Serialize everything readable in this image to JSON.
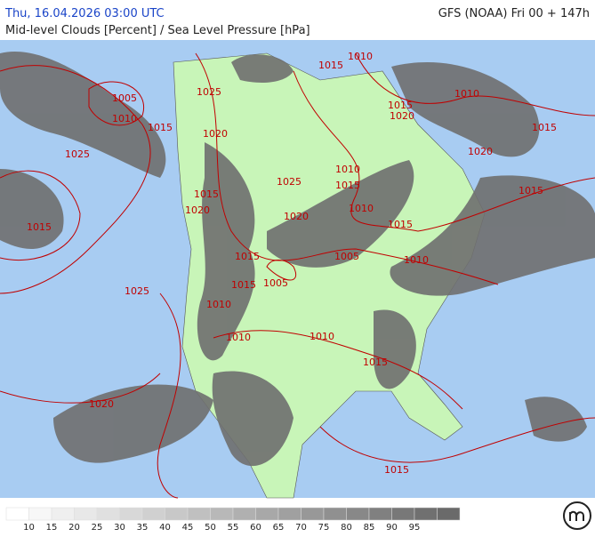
{
  "header": {
    "valid_time": "Thu, 16.04.2026 03:00 UTC",
    "model": "GFS (NOAA) Fri 00 + 147h",
    "title": "Mid-level Clouds [Percent] / Sea Level Pressure [hPa]"
  },
  "isobar_labels": [
    "1015",
    "1010",
    "1005",
    "1010",
    "1015",
    "1025",
    "1020",
    "1015",
    "1020",
    "1010",
    "1015",
    "1020",
    "1025",
    "1015",
    "1010",
    "1015",
    "1025",
    "1010",
    "1020",
    "1020",
    "1015",
    "1015",
    "1015",
    "1015",
    "1005",
    "1010",
    "1015",
    "1025",
    "1005",
    "1010",
    "1010",
    "1010",
    "1015",
    "1020",
    "1015"
  ],
  "legend": {
    "ticks": [
      10,
      15,
      20,
      25,
      30,
      35,
      40,
      45,
      50,
      55,
      60,
      65,
      70,
      75,
      80,
      85,
      90,
      95
    ],
    "colors": [
      "#ffffff",
      "#f7f7f7",
      "#efefef",
      "#e8e8e8",
      "#e0e0e0",
      "#d8d8d8",
      "#d0d0d0",
      "#c8c8c8",
      "#c0c0c0",
      "#b8b8b8",
      "#b0b0b0",
      "#a8a8a8",
      "#a0a0a0",
      "#989898",
      "#909090",
      "#888888",
      "#808080",
      "#787878",
      "#707070",
      "#6a6a6a"
    ]
  }
}
